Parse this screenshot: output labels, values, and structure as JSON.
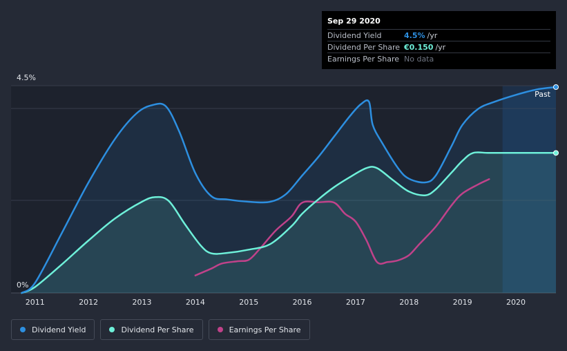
{
  "colors": {
    "background": "#252a36",
    "plot_bg": "#1d222d",
    "dividend_yield": "#2d8fe0",
    "dividend_per_share": "#6ef0d9",
    "earnings_per_share": "#c0428a"
  },
  "tooltip": {
    "date": "Sep 29 2020",
    "rows": [
      {
        "label": "Dividend Yield",
        "value": "4.5%",
        "unit": "/yr",
        "color": "#2d8fe0"
      },
      {
        "label": "Dividend Per Share",
        "value": "€0.150",
        "unit": "/yr",
        "color": "#6ef0d9"
      },
      {
        "label": "Earnings Per Share",
        "value": "No data",
        "unit": "",
        "color": "#6f7582"
      }
    ]
  },
  "legend": [
    {
      "label": "Dividend Yield",
      "color": "#2d8fe0"
    },
    {
      "label": "Dividend Per Share",
      "color": "#6ef0d9"
    },
    {
      "label": "Earnings Per Share",
      "color": "#c0428a"
    }
  ],
  "chart_data": {
    "type": "line",
    "title": "",
    "xlabel": "",
    "ylabel": "",
    "x_ticks": [
      "2011",
      "2012",
      "2013",
      "2014",
      "2015",
      "2016",
      "2017",
      "2018",
      "2019",
      "2020"
    ],
    "y_ticks": [
      "0%",
      "4.5%"
    ],
    "xlim": [
      2010.55,
      2020.75
    ],
    "ylim": [
      0,
      4.5
    ],
    "past_label": "Past",
    "past_region_start": 2019.75,
    "grid": "horizontal",
    "legend_position": "bottom-left",
    "series": [
      {
        "name": "Dividend Yield",
        "axis": "yield",
        "points": [
          [
            2010.75,
            0
          ],
          [
            2011.0,
            0.22
          ],
          [
            2011.5,
            1.3
          ],
          [
            2012.0,
            2.4
          ],
          [
            2012.5,
            3.35
          ],
          [
            2012.9,
            3.9
          ],
          [
            2013.2,
            4.08
          ],
          [
            2013.45,
            4.05
          ],
          [
            2013.7,
            3.5
          ],
          [
            2014.0,
            2.6
          ],
          [
            2014.3,
            2.1
          ],
          [
            2014.6,
            2.03
          ],
          [
            2015.0,
            1.98
          ],
          [
            2015.4,
            1.98
          ],
          [
            2015.7,
            2.15
          ],
          [
            2016.0,
            2.55
          ],
          [
            2016.3,
            2.95
          ],
          [
            2016.6,
            3.4
          ],
          [
            2016.9,
            3.85
          ],
          [
            2017.1,
            4.1
          ],
          [
            2017.25,
            4.15
          ],
          [
            2017.32,
            3.65
          ],
          [
            2017.5,
            3.25
          ],
          [
            2017.8,
            2.7
          ],
          [
            2018.0,
            2.48
          ],
          [
            2018.3,
            2.4
          ],
          [
            2018.5,
            2.55
          ],
          [
            2018.8,
            3.2
          ],
          [
            2019.0,
            3.65
          ],
          [
            2019.3,
            4.0
          ],
          [
            2019.6,
            4.15
          ],
          [
            2020.0,
            4.3
          ],
          [
            2020.4,
            4.42
          ],
          [
            2020.75,
            4.47
          ]
        ]
      },
      {
        "name": "Dividend Per Share",
        "axis": "dps",
        "points": [
          [
            2010.75,
            0
          ],
          [
            2011.0,
            0.13
          ],
          [
            2011.5,
            0.62
          ],
          [
            2012.0,
            1.14
          ],
          [
            2012.5,
            1.62
          ],
          [
            2013.0,
            1.98
          ],
          [
            2013.25,
            2.08
          ],
          [
            2013.5,
            2.0
          ],
          [
            2013.8,
            1.5
          ],
          [
            2014.1,
            1.03
          ],
          [
            2014.3,
            0.86
          ],
          [
            2014.6,
            0.87
          ],
          [
            2015.0,
            0.94
          ],
          [
            2015.4,
            1.06
          ],
          [
            2015.8,
            1.45
          ],
          [
            2016.0,
            1.72
          ],
          [
            2016.3,
            2.03
          ],
          [
            2016.6,
            2.3
          ],
          [
            2016.9,
            2.52
          ],
          [
            2017.2,
            2.71
          ],
          [
            2017.4,
            2.71
          ],
          [
            2017.7,
            2.45
          ],
          [
            2018.0,
            2.2
          ],
          [
            2018.3,
            2.12
          ],
          [
            2018.5,
            2.25
          ],
          [
            2018.8,
            2.62
          ],
          [
            2019.0,
            2.87
          ],
          [
            2019.2,
            3.04
          ],
          [
            2019.5,
            3.04
          ],
          [
            2020.0,
            3.04
          ],
          [
            2020.75,
            3.04
          ]
        ]
      },
      {
        "name": "Earnings Per Share",
        "axis": "eps",
        "points": [
          [
            2014.0,
            0.38
          ],
          [
            2014.3,
            0.53
          ],
          [
            2014.5,
            0.64
          ],
          [
            2014.8,
            0.69
          ],
          [
            2015.0,
            0.72
          ],
          [
            2015.2,
            0.95
          ],
          [
            2015.5,
            1.35
          ],
          [
            2015.8,
            1.66
          ],
          [
            2016.0,
            1.96
          ],
          [
            2016.3,
            1.97
          ],
          [
            2016.6,
            1.96
          ],
          [
            2016.8,
            1.72
          ],
          [
            2017.0,
            1.55
          ],
          [
            2017.2,
            1.15
          ],
          [
            2017.4,
            0.67
          ],
          [
            2017.6,
            0.67
          ],
          [
            2017.8,
            0.71
          ],
          [
            2018.0,
            0.82
          ],
          [
            2018.2,
            1.07
          ],
          [
            2018.5,
            1.44
          ],
          [
            2018.8,
            1.91
          ],
          [
            2019.0,
            2.16
          ],
          [
            2019.3,
            2.36
          ],
          [
            2019.5,
            2.47
          ]
        ]
      }
    ]
  }
}
